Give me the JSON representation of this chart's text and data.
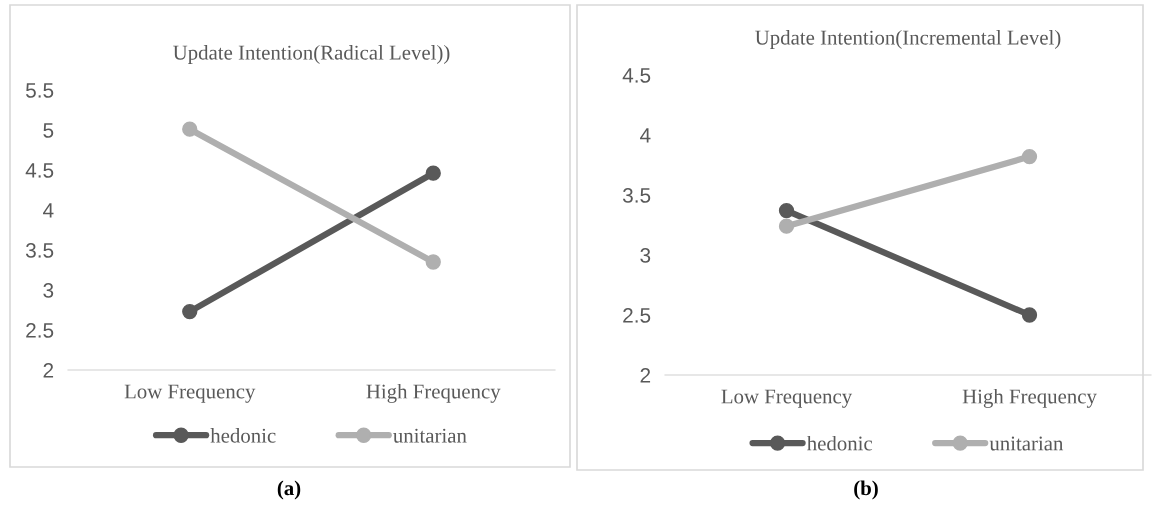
{
  "chart_data": [
    {
      "type": "line",
      "title": "Update Intention(Radical Level))",
      "categories": [
        "Low Frequency",
        "High Frequency"
      ],
      "series": [
        {
          "name": "hedonic",
          "color": "#595959",
          "values": [
            2.73,
            4.46
          ]
        },
        {
          "name": "unitarian",
          "color": "#afafaf",
          "values": [
            5.01,
            3.35
          ]
        }
      ],
      "ylim": [
        2,
        5.5
      ],
      "yticks": [
        2,
        2.5,
        3,
        3.5,
        4,
        4.5,
        5,
        5.5
      ],
      "grid": false,
      "legend": "bottom",
      "marker": "circle",
      "line_style": "solid",
      "annotations": [
        "(a)"
      ]
    },
    {
      "type": "line",
      "title": "Update Intention(Incremental Level)",
      "categories": [
        "Low Frequency",
        "High Frequency"
      ],
      "series": [
        {
          "name": "hedonic",
          "color": "#595959",
          "values": [
            3.37,
            2.5
          ]
        },
        {
          "name": "unitarian",
          "color": "#afafaf",
          "values": [
            3.24,
            3.82
          ]
        }
      ],
      "ylim": [
        2,
        4.5
      ],
      "yticks": [
        2,
        2.5,
        3,
        3.5,
        4,
        4.5
      ],
      "grid": false,
      "legend": "bottom",
      "marker": "circle",
      "line_style": "solid",
      "annotations": [
        "(b)"
      ]
    }
  ]
}
